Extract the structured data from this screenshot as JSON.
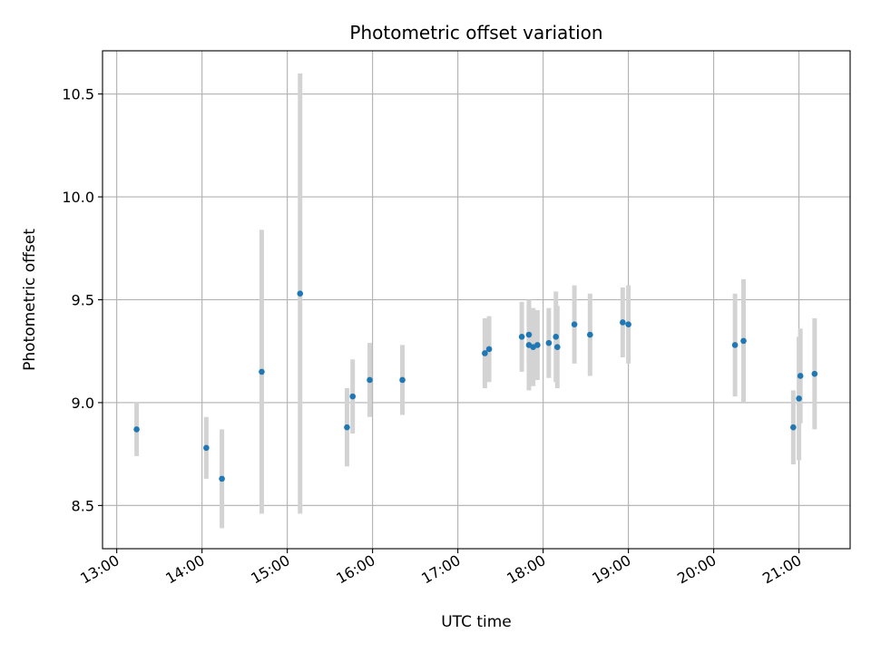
{
  "chart_data": {
    "type": "scatter",
    "title": "Photometric offset variation",
    "xlabel": "UTC time",
    "ylabel": "Photometric offset",
    "xlim": [
      "12:50",
      "21:36"
    ],
    "ylim": [
      8.29,
      10.71
    ],
    "grid": true,
    "x_ticks": [
      "13:00",
      "14:00",
      "15:00",
      "16:00",
      "17:00",
      "18:00",
      "19:00",
      "20:00",
      "21:00"
    ],
    "y_ticks": [
      8.5,
      9.0,
      9.5,
      10.0,
      10.5
    ],
    "y_tick_labels": [
      "8.5",
      "9.0",
      "9.5",
      "10.0",
      "10.5"
    ],
    "colors": {
      "point": "#1f77b4",
      "errorbar": "#d3d3d3",
      "grid": "#b0b0b0"
    },
    "points": [
      {
        "x": "13:14",
        "y": 8.87,
        "err": 0.13
      },
      {
        "x": "14:03",
        "y": 8.78,
        "err": 0.15
      },
      {
        "x": "14:14",
        "y": 8.63,
        "err": 0.24
      },
      {
        "x": "14:42",
        "y": 9.15,
        "err": 0.69
      },
      {
        "x": "15:09",
        "y": 9.53,
        "err": 1.07
      },
      {
        "x": "15:42",
        "y": 8.88,
        "err": 0.19
      },
      {
        "x": "15:46",
        "y": 9.03,
        "err": 0.18
      },
      {
        "x": "15:58",
        "y": 9.11,
        "err": 0.18
      },
      {
        "x": "16:21",
        "y": 9.11,
        "err": 0.17
      },
      {
        "x": "17:19",
        "y": 9.24,
        "err": 0.17
      },
      {
        "x": "17:22",
        "y": 9.26,
        "err": 0.16
      },
      {
        "x": "17:45",
        "y": 9.32,
        "err": 0.17
      },
      {
        "x": "17:50",
        "y": 9.33,
        "err": 0.17
      },
      {
        "x": "17:50",
        "y": 9.28,
        "err": 0.22
      },
      {
        "x": "17:53",
        "y": 9.27,
        "err": 0.19
      },
      {
        "x": "17:56",
        "y": 9.28,
        "err": 0.17
      },
      {
        "x": "18:04",
        "y": 9.29,
        "err": 0.17
      },
      {
        "x": "18:09",
        "y": 9.32,
        "err": 0.22
      },
      {
        "x": "18:10",
        "y": 9.27,
        "err": 0.2
      },
      {
        "x": "18:22",
        "y": 9.38,
        "err": 0.19
      },
      {
        "x": "18:33",
        "y": 9.33,
        "err": 0.2
      },
      {
        "x": "18:56",
        "y": 9.39,
        "err": 0.17
      },
      {
        "x": "19:00",
        "y": 9.38,
        "err": 0.19
      },
      {
        "x": "20:15",
        "y": 9.28,
        "err": 0.25
      },
      {
        "x": "20:21",
        "y": 9.3,
        "err": 0.3
      },
      {
        "x": "20:56",
        "y": 8.88,
        "err": 0.18
      },
      {
        "x": "21:00",
        "y": 9.02,
        "err": 0.3
      },
      {
        "x": "21:01",
        "y": 9.13,
        "err": 0.23
      },
      {
        "x": "21:11",
        "y": 9.14,
        "err": 0.27
      }
    ]
  }
}
